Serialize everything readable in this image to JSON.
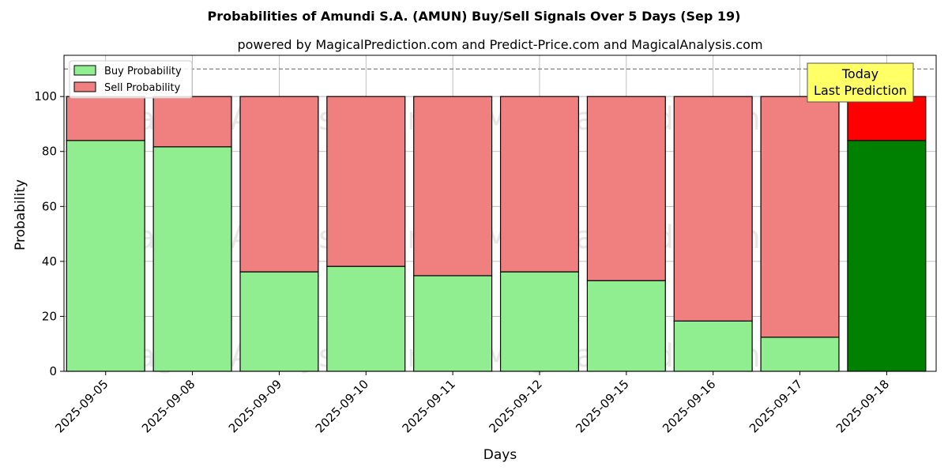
{
  "chart_data": {
    "type": "bar",
    "stacked": true,
    "title": "Probabilities of Amundi S.A. (AMUN) Buy/Sell Signals Over 5 Days (Sep 19)",
    "subtitle": "powered by MagicalPrediction.com and Predict-Price.com and MagicalAnalysis.com",
    "xlabel": "Days",
    "ylabel": "Probability",
    "ylim": [
      0,
      115
    ],
    "yticks": [
      0,
      20,
      40,
      60,
      80,
      100
    ],
    "reference_line": 110,
    "categories": [
      "2025-09-05",
      "2025-09-08",
      "2025-09-09",
      "2025-09-10",
      "2025-09-11",
      "2025-09-12",
      "2025-09-15",
      "2025-09-16",
      "2025-09-17",
      "2025-09-18"
    ],
    "series": [
      {
        "name": "Buy Probability",
        "color": "#90ee90",
        "highlight_color": "#008000",
        "values": [
          84,
          81.7,
          36.2,
          38.2,
          34.8,
          36.2,
          33,
          18.3,
          12.4,
          84
        ]
      },
      {
        "name": "Sell Probability",
        "color": "#f08080",
        "highlight_color": "#ff0000",
        "values": [
          16,
          18.3,
          63.8,
          61.8,
          65.2,
          63.8,
          67,
          81.7,
          87.6,
          16
        ]
      }
    ],
    "legend_position": "upper left",
    "annotation": {
      "line1": "Today",
      "line2": "Last Prediction",
      "color": "#ffff66"
    },
    "grid": true
  },
  "watermarks": [
    "MagicalAnalysis.com",
    "MagicalPrediction.com"
  ]
}
